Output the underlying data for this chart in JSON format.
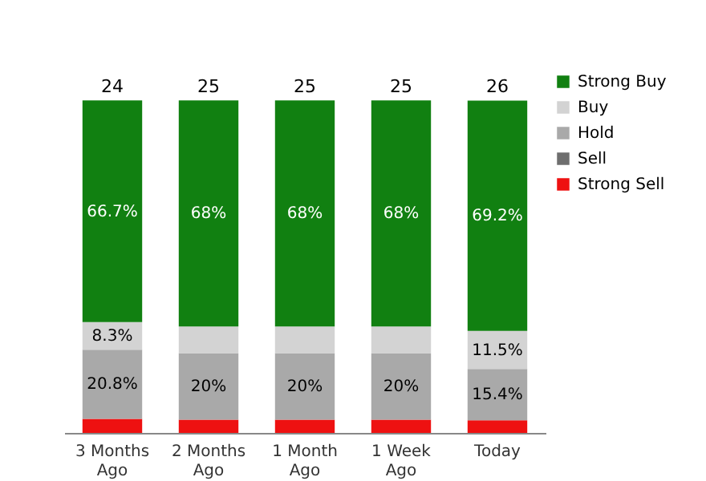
{
  "chart_data": {
    "type": "bar",
    "stacked": true,
    "categories": [
      "3 Months Ago",
      "2 Months Ago",
      "1 Month Ago",
      "1 Week Ago",
      "Today"
    ],
    "series": [
      {
        "name": "Strong Sell",
        "color": "#ee1111",
        "values": [
          4.2,
          4,
          4,
          4,
          3.8
        ],
        "value_labels": [
          null,
          null,
          null,
          null,
          null
        ]
      },
      {
        "name": "Sell",
        "color": "#6e6e6e",
        "values": [
          0,
          0,
          0,
          0,
          0
        ],
        "value_labels": [
          null,
          null,
          null,
          null,
          null
        ]
      },
      {
        "name": "Hold",
        "color": "#a9a9a9",
        "values": [
          20.8,
          20,
          20,
          20,
          15.4
        ],
        "value_labels": [
          "20.8%",
          "20%",
          "20%",
          "20%",
          "15.4%"
        ]
      },
      {
        "name": "Buy",
        "color": "#d3d3d3",
        "values": [
          8.3,
          8,
          8,
          8,
          11.5
        ],
        "value_labels": [
          "8.3%",
          null,
          null,
          null,
          "11.5%"
        ]
      },
      {
        "name": "Strong Buy",
        "color": "#118011",
        "values": [
          66.7,
          68,
          68,
          68,
          69.2
        ],
        "value_labels": [
          "66.7%",
          "68%",
          "68%",
          "68%",
          "69.2%"
        ]
      }
    ],
    "annotations": [
      {
        "text": "24",
        "x": "3 Months Ago",
        "y": 100
      },
      {
        "text": "25",
        "x": "2 Months Ago",
        "y": 100
      },
      {
        "text": "25",
        "x": "1 Month Ago",
        "y": 100
      },
      {
        "text": "25",
        "x": "1 Week Ago",
        "y": 100
      },
      {
        "text": "26",
        "x": "Today",
        "y": 100
      }
    ],
    "legend": "right"
  }
}
